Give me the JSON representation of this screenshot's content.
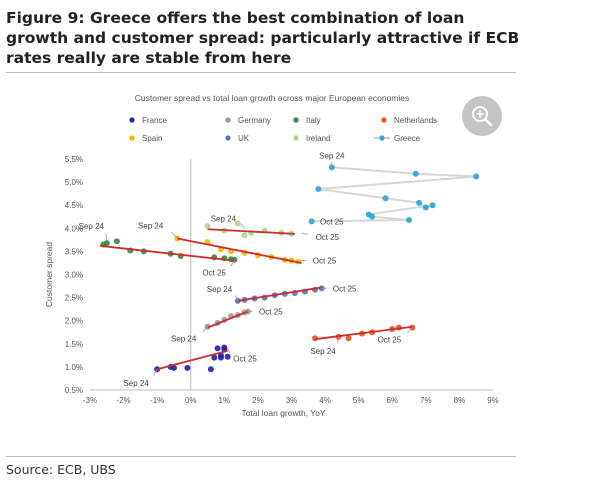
{
  "figure": {
    "title": "Figure 9: Greece offers the best combination of loan growth and customer spread: particularly attractive if ECB rates really are stable from here",
    "source": "Source: ECB, UBS"
  },
  "zoom_icon": "zoom-in-icon",
  "chart_data": {
    "type": "scatter",
    "title": "Customer spread vs total loan growth across major European economies",
    "xlabel": "Total loan growth, YoY",
    "ylabel": "Customer spread",
    "xlim": [
      -3,
      9
    ],
    "ylim": [
      0.5,
      5.5
    ],
    "x_ticks": [
      "-3%",
      "-2%",
      "-1%",
      "0%",
      "1%",
      "2%",
      "3%",
      "4%",
      "5%",
      "6%",
      "7%",
      "8%",
      "9%"
    ],
    "y_ticks": [
      "0.5%",
      "1.0%",
      "1.5%",
      "2.0%",
      "2.5%",
      "3.0%",
      "3.5%",
      "4.0%",
      "4.5%",
      "5.0%",
      "5.5%"
    ],
    "grid": false,
    "legend_placement": "top",
    "series": [
      {
        "name": "France",
        "color": "#1f1fb4",
        "marker": "dot",
        "x": [
          -1.0,
          -0.6,
          -0.5,
          -0.1,
          0.6,
          0.7,
          0.9,
          0.9,
          1.1,
          1.0,
          0.8,
          1.0
        ],
        "y": [
          0.95,
          1.0,
          0.98,
          0.98,
          0.95,
          1.2,
          1.25,
          1.2,
          1.22,
          1.38,
          1.4,
          1.42
        ],
        "trend": [
          [
            -1.0,
            0.95
          ],
          [
            1.1,
            1.35
          ]
        ]
      },
      {
        "name": "Germany",
        "color": "#9a9a9a",
        "marker": "dot",
        "x": [
          0.5,
          0.8,
          1.0,
          1.2,
          1.4,
          1.6,
          1.7
        ],
        "y": [
          1.87,
          1.95,
          2.02,
          2.1,
          2.12,
          2.18,
          2.2
        ],
        "trend": [
          [
            0.5,
            1.85
          ],
          [
            1.7,
            2.2
          ]
        ]
      },
      {
        "name": "Italy",
        "color": "#2e8b3e",
        "marker": "dot",
        "x": [
          -2.6,
          -2.5,
          -2.2,
          -1.8,
          -1.4,
          -0.6,
          -0.3,
          0.7,
          1.0,
          1.2,
          1.3
        ],
        "y": [
          3.65,
          3.68,
          3.72,
          3.52,
          3.5,
          3.45,
          3.4,
          3.37,
          3.35,
          3.33,
          3.32
        ],
        "trend": [
          [
            -2.7,
            3.62
          ],
          [
            1.3,
            3.3
          ]
        ]
      },
      {
        "name": "Netherlands",
        "color": "#e8501a",
        "marker": "dot",
        "x": [
          3.7,
          4.4,
          4.7,
          5.1,
          5.4,
          6.0,
          6.2,
          6.6
        ],
        "y": [
          1.62,
          1.65,
          1.62,
          1.72,
          1.75,
          1.82,
          1.85,
          1.85
        ],
        "trend": [
          [
            3.7,
            1.6
          ],
          [
            6.6,
            1.87
          ]
        ]
      },
      {
        "name": "Spain",
        "color": "#f4b400",
        "marker": "dot",
        "x": [
          -0.4,
          0.5,
          0.9,
          1.2,
          1.6,
          2.0,
          2.4,
          2.8,
          3.0,
          3.2
        ],
        "y": [
          3.78,
          3.7,
          3.55,
          3.5,
          3.47,
          3.42,
          3.38,
          3.32,
          3.3,
          3.28
        ],
        "trend": [
          [
            -0.4,
            3.78
          ],
          [
            3.3,
            3.25
          ]
        ]
      },
      {
        "name": "UK",
        "color": "#4a78c2",
        "marker": "dot",
        "x": [
          1.4,
          1.6,
          1.9,
          2.2,
          2.5,
          2.8,
          3.1,
          3.4,
          3.7,
          3.9
        ],
        "y": [
          2.43,
          2.45,
          2.48,
          2.5,
          2.55,
          2.58,
          2.6,
          2.63,
          2.67,
          2.7
        ],
        "trend": [
          [
            1.4,
            2.43
          ],
          [
            3.9,
            2.72
          ]
        ]
      },
      {
        "name": "Ireland",
        "color": "#a8d88c",
        "marker": "dot",
        "x": [
          0.5,
          1.0,
          1.4,
          1.6,
          1.8,
          2.2,
          2.7,
          3.0
        ],
        "y": [
          4.05,
          3.95,
          4.1,
          3.85,
          3.9,
          3.95,
          3.9,
          3.88
        ],
        "trend": [
          [
            0.5,
            3.98
          ],
          [
            3.1,
            3.88
          ]
        ]
      },
      {
        "name": "Greece",
        "color": "#2aa3d9",
        "marker": "dot-line",
        "x": [
          4.2,
          6.7,
          8.5,
          3.8,
          5.8,
          6.8,
          7.0,
          7.2,
          5.3,
          5.4,
          6.5,
          3.6
        ],
        "y": [
          5.32,
          5.18,
          5.12,
          4.85,
          4.65,
          4.55,
          4.45,
          4.5,
          4.3,
          4.25,
          4.18,
          4.15
        ]
      }
    ],
    "annotations": [
      {
        "text": "Sep 24",
        "x": 4.2,
        "y": 5.32
      },
      {
        "text": "Oct 25",
        "x": 3.6,
        "y": 4.15
      },
      {
        "text": "Sep 24",
        "x": 1.6,
        "y": 4.0
      },
      {
        "text": "Oct 25",
        "x": 3.3,
        "y": 3.9
      },
      {
        "text": "Sep 24",
        "x": -2.5,
        "y": 3.75
      },
      {
        "text": "Sep 24",
        "x": -0.4,
        "y": 3.8
      },
      {
        "text": "Oct 25",
        "x": 3.3,
        "y": 3.3
      },
      {
        "text": "Oct 25",
        "x": 1.3,
        "y": 3.3
      },
      {
        "text": "Oct 25",
        "x": 3.9,
        "y": 2.7
      },
      {
        "text": "Sep 24",
        "x": 1.4,
        "y": 2.43
      },
      {
        "text": "Oct 25",
        "x": 1.7,
        "y": 2.2
      },
      {
        "text": "Sep 24",
        "x": 0.5,
        "y": 1.87
      },
      {
        "text": "Oct 25",
        "x": 1.1,
        "y": 1.4
      },
      {
        "text": "Sep 24",
        "x": -1.0,
        "y": 0.95
      },
      {
        "text": "Sep 24",
        "x": 4.4,
        "y": 1.65
      },
      {
        "text": "Oct 25",
        "x": 6.6,
        "y": 1.85
      }
    ]
  }
}
